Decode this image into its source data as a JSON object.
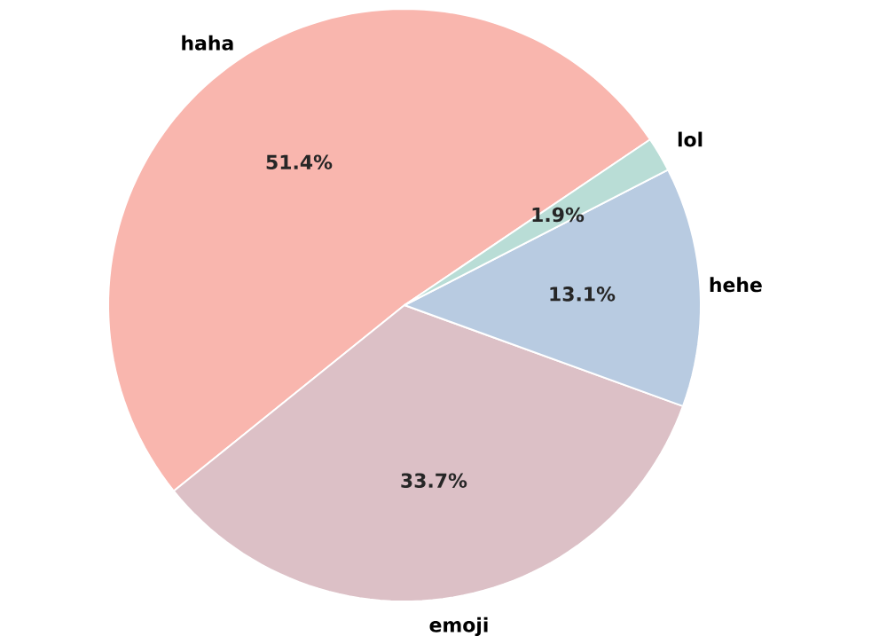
{
  "chart_data": {
    "type": "pie",
    "categories": [
      "haha",
      "emoji",
      "hehe",
      "lol"
    ],
    "values": [
      51.4,
      33.7,
      13.1,
      1.9
    ],
    "colors": [
      "#f9b6ae",
      "#dcc0c6",
      "#b8cbe1",
      "#b9ddd6"
    ],
    "value_labels": [
      "51.4%",
      "33.7%",
      "13.1%",
      "1.9%"
    ]
  }
}
